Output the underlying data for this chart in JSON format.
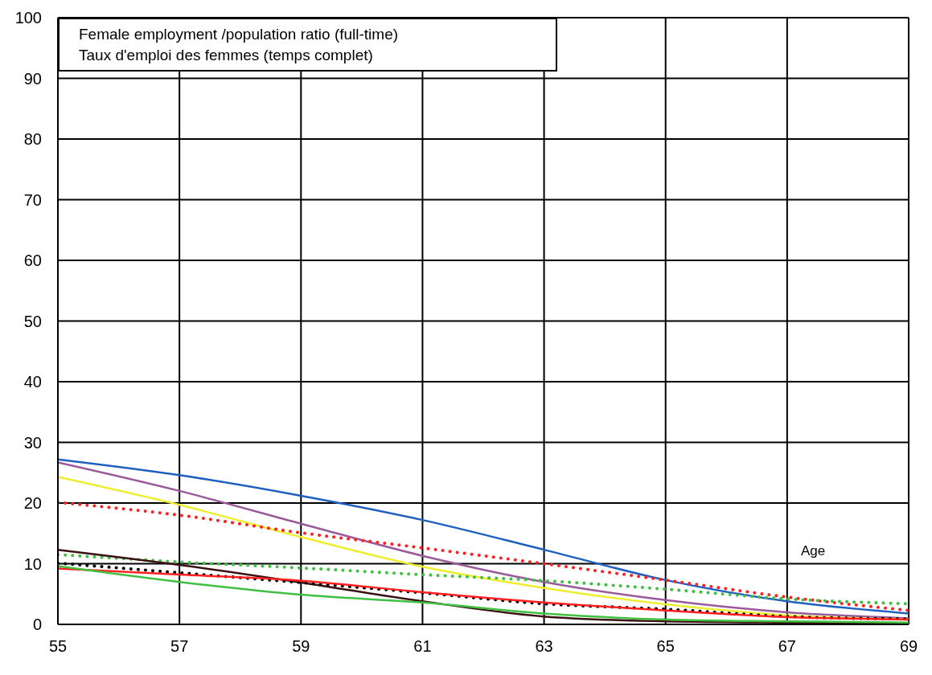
{
  "chart_data": {
    "type": "line",
    "title": "Female employment /population ratio (full-time)",
    "subtitle": "Taux d'emploi des femmes (temps complet)",
    "xlabel": "Age",
    "x": [
      55,
      57,
      59,
      61,
      63,
      65,
      67,
      69
    ],
    "series": [
      {
        "color": "#1f5fc0",
        "line_style": "solid",
        "values": [
          27.2,
          24.6,
          21.2,
          17.2,
          12.3,
          7.3,
          3.8,
          1.8
        ]
      },
      {
        "color": "#9a5a9a",
        "line_style": "solid",
        "values": [
          26.7,
          22.0,
          16.6,
          11.3,
          7.0,
          4.0,
          2.0,
          1.0
        ]
      },
      {
        "color": "#eeee30",
        "line_style": "solid",
        "values": [
          24.3,
          19.7,
          14.4,
          9.5,
          6.0,
          3.3,
          1.5,
          0.8
        ]
      },
      {
        "color": "#ff2020",
        "line_style": "dotted",
        "values": [
          20.1,
          18.0,
          15.1,
          12.6,
          10.0,
          7.3,
          4.5,
          2.3
        ]
      },
      {
        "color": "#40c040",
        "line_style": "dotted",
        "values": [
          11.5,
          10.3,
          9.3,
          8.2,
          7.2,
          5.8,
          4.2,
          3.4
        ]
      },
      {
        "color": "#3a1010",
        "line_style": "solid",
        "values": [
          12.3,
          9.8,
          6.9,
          3.8,
          1.3,
          0.5,
          0.3,
          0.2
        ]
      },
      {
        "color": "#000000",
        "line_style": "dotted",
        "values": [
          10.1,
          8.5,
          6.9,
          5.2,
          3.4,
          2.5,
          1.3,
          0.9
        ]
      },
      {
        "color": "#ff2020",
        "line_style": "solid",
        "values": [
          9.2,
          8.2,
          7.2,
          5.3,
          3.6,
          2.3,
          1.2,
          0.8
        ]
      },
      {
        "color": "#40c040",
        "line_style": "solid",
        "values": [
          9.6,
          7.0,
          4.9,
          3.6,
          1.8,
          0.8,
          0.5,
          0.3
        ]
      }
    ],
    "xlim": [
      55,
      69
    ],
    "xticks": [
      55,
      57,
      59,
      61,
      63,
      65,
      67,
      69
    ],
    "ylim": [
      0,
      100
    ],
    "yticks": [
      0,
      10,
      20,
      30,
      40,
      50,
      60,
      70,
      80,
      90,
      100
    ],
    "grid": true,
    "marker": "none"
  }
}
